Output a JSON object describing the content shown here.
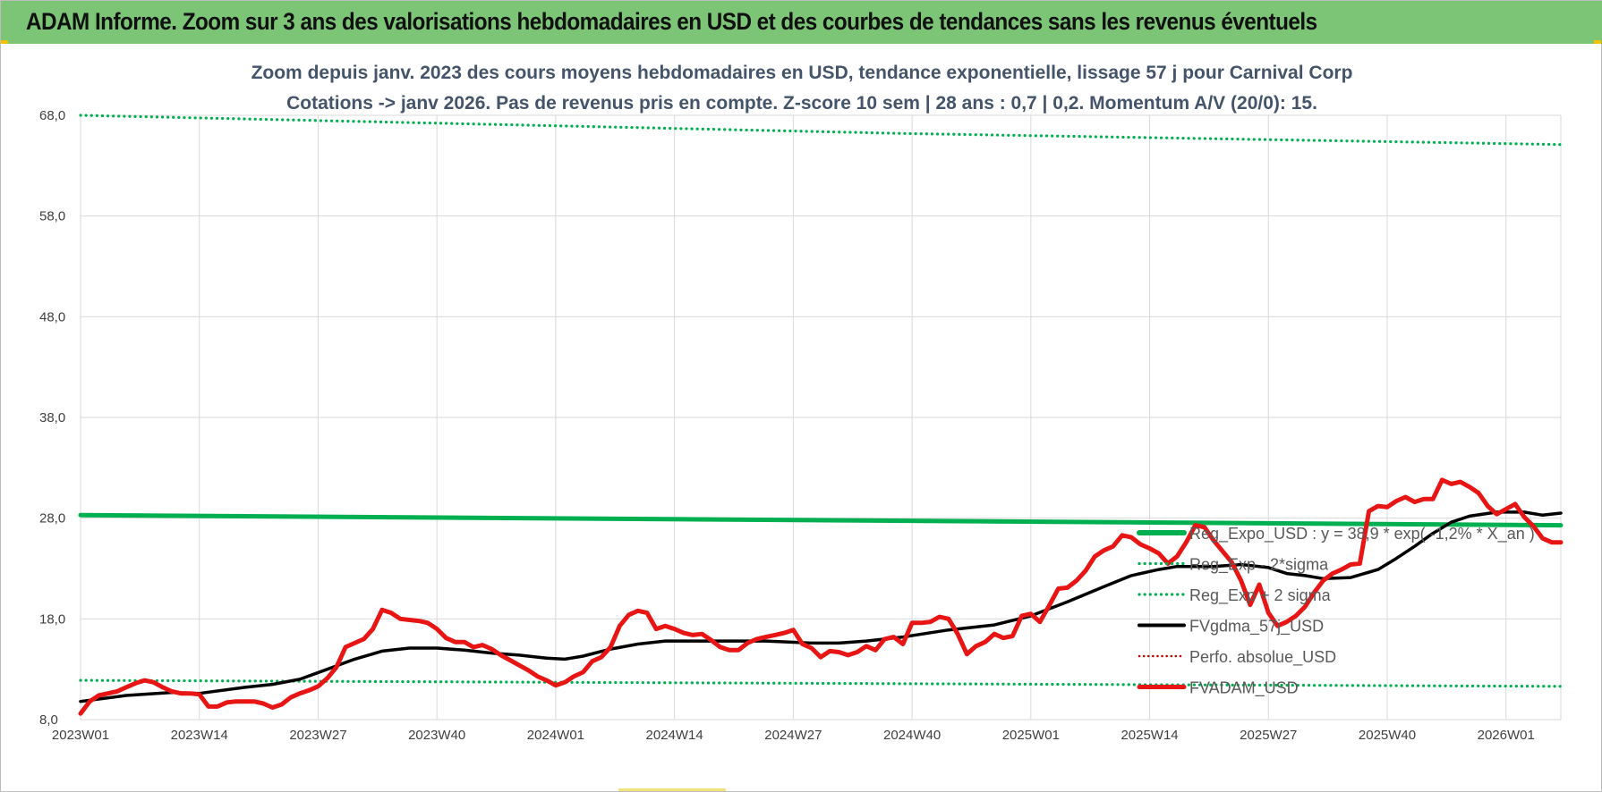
{
  "header": {
    "title": "ADAM Informe. Zoom sur 3 ans des valorisations hebdomadaires en USD et des courbes de tendances sans les revenus éventuels"
  },
  "colors": {
    "header_band": "#7cc576",
    "accent_corner": "#f2c200",
    "title_text": "#44546a",
    "grid": "#d9d9d9",
    "reg_expo": "#00b050",
    "fvgdma": "#000000",
    "perfo": "#c00000",
    "fvadam": "#e81515"
  },
  "chart_data": {
    "type": "line",
    "title": "Zoom depuis janv. 2023 des cours moyens hebdomadaires en USD, tendance exponentielle, lissage 57 j pour Carnival Corp",
    "subtitle": "Cotations -> janv 2026. Pas de revenus pris en compte. Z-score 10 sem | 28 ans : 0,7 | 0,2. Momentum A/V (20/0): 15.",
    "xlabel": "",
    "ylabel": "",
    "x_tick_labels": [
      "2023W01",
      "2023W14",
      "2023W27",
      "2023W40",
      "2024W01",
      "2024W14",
      "2024W27",
      "2024W40",
      "2025W01",
      "2025W14",
      "2025W27",
      "2025W40",
      "2026W01"
    ],
    "x_range_weeks": [
      0,
      162
    ],
    "y_ticks": [
      "8,0",
      "18,0",
      "28,0",
      "38,0",
      "48,0",
      "58,0",
      "68,0"
    ],
    "ylim": [
      8,
      68
    ],
    "grid": true,
    "legend_position": "right",
    "legend": [
      "Reg_Expo_USD : y = 38,9 * exp( -1,2% * X_an )",
      "Reg_Exp - 2*sigma",
      "Reg_Exp + 2 sigma",
      "FVgdma_57j_USD",
      "Perfo. absolue_USD",
      "FVADAM_USD"
    ],
    "series": [
      {
        "name": "Reg_Expo_USD : y = 38,9 * exp( -1,2% * X_an )",
        "style": "solid-thick",
        "color": "#00b050",
        "points": [
          [
            0,
            28.3
          ],
          [
            162,
            27.3
          ]
        ]
      },
      {
        "name": "Reg_Exp - 2*sigma",
        "style": "dotted",
        "color": "#00b050",
        "points": [
          [
            0,
            11.9
          ],
          [
            162,
            11.3
          ]
        ]
      },
      {
        "name": "Reg_Exp + 2 sigma",
        "style": "dotted",
        "color": "#00b050",
        "points": [
          [
            0,
            68.0
          ],
          [
            20,
            67.6
          ],
          [
            90,
            66.2
          ],
          [
            162,
            65.1
          ]
        ]
      },
      {
        "name": "FVgdma_57j_USD",
        "style": "solid",
        "color": "#000000",
        "points": [
          [
            0,
            9.8
          ],
          [
            5,
            10.4
          ],
          [
            10,
            10.7
          ],
          [
            13,
            10.6
          ],
          [
            18,
            11.2
          ],
          [
            21,
            11.5
          ],
          [
            24,
            12.0
          ],
          [
            27,
            13.0
          ],
          [
            30,
            14.0
          ],
          [
            33,
            14.8
          ],
          [
            36,
            15.1
          ],
          [
            39,
            15.1
          ],
          [
            42,
            14.9
          ],
          [
            45,
            14.6
          ],
          [
            48,
            14.4
          ],
          [
            51,
            14.1
          ],
          [
            53,
            14.0
          ],
          [
            55,
            14.3
          ],
          [
            58,
            15.0
          ],
          [
            61,
            15.5
          ],
          [
            64,
            15.8
          ],
          [
            70,
            15.8
          ],
          [
            75,
            15.8
          ],
          [
            80,
            15.6
          ],
          [
            83,
            15.6
          ],
          [
            86,
            15.8
          ],
          [
            90,
            16.2
          ],
          [
            95,
            16.9
          ],
          [
            100,
            17.4
          ],
          [
            104,
            18.3
          ],
          [
            108,
            19.7
          ],
          [
            112,
            21.2
          ],
          [
            115,
            22.3
          ],
          [
            118,
            22.9
          ],
          [
            120,
            23.2
          ],
          [
            124,
            23.2
          ],
          [
            127,
            23.4
          ],
          [
            130,
            23.1
          ],
          [
            132,
            22.5
          ],
          [
            134,
            22.3
          ],
          [
            136,
            22.0
          ],
          [
            139,
            22.1
          ],
          [
            142,
            22.9
          ],
          [
            144,
            24.0
          ],
          [
            146,
            25.2
          ],
          [
            148,
            26.5
          ],
          [
            150,
            27.6
          ],
          [
            152,
            28.2
          ],
          [
            155,
            28.6
          ],
          [
            158,
            28.6
          ],
          [
            160,
            28.3
          ],
          [
            162,
            28.5
          ],
          [
            165,
            29.1
          ],
          [
            170,
            28.3
          ],
          [
            175,
            28.2
          ],
          [
            179,
            28.9
          ],
          [
            183,
            29.4
          ],
          [
            186,
            29.5
          ]
        ]
      },
      {
        "name": "FVADAM_USD",
        "style": "solid-thick",
        "color": "#e81515",
        "points": [
          [
            0,
            8.6
          ],
          [
            1,
            9.8
          ],
          [
            2,
            10.4
          ],
          [
            4,
            10.8
          ],
          [
            5,
            11.2
          ],
          [
            6,
            11.6
          ],
          [
            7,
            11.9
          ],
          [
            8,
            11.7
          ],
          [
            9,
            11.2
          ],
          [
            10,
            10.8
          ],
          [
            11,
            10.6
          ],
          [
            12,
            10.6
          ],
          [
            13,
            10.5
          ],
          [
            14,
            9.3
          ],
          [
            15,
            9.3
          ],
          [
            16,
            9.7
          ],
          [
            17,
            9.8
          ],
          [
            18,
            9.8
          ],
          [
            19,
            9.8
          ],
          [
            20,
            9.6
          ],
          [
            21,
            9.2
          ],
          [
            22,
            9.5
          ],
          [
            23,
            10.2
          ],
          [
            24,
            10.6
          ],
          [
            25,
            10.9
          ],
          [
            26,
            11.3
          ],
          [
            27,
            12.1
          ],
          [
            28,
            13.2
          ],
          [
            29,
            15.2
          ],
          [
            30,
            15.6
          ],
          [
            31,
            16.0
          ],
          [
            32,
            17.0
          ],
          [
            33,
            18.9
          ],
          [
            34,
            18.6
          ],
          [
            35,
            18.0
          ],
          [
            36,
            17.9
          ],
          [
            37,
            17.8
          ],
          [
            38,
            17.6
          ],
          [
            39,
            17.0
          ],
          [
            40,
            16.1
          ],
          [
            41,
            15.7
          ],
          [
            42,
            15.7
          ],
          [
            43,
            15.2
          ],
          [
            44,
            15.4
          ],
          [
            45,
            15.0
          ],
          [
            46,
            14.4
          ],
          [
            47,
            13.9
          ],
          [
            48,
            13.4
          ],
          [
            49,
            12.9
          ],
          [
            50,
            12.3
          ],
          [
            51,
            11.9
          ],
          [
            52,
            11.4
          ],
          [
            53,
            11.7
          ],
          [
            54,
            12.3
          ],
          [
            55,
            12.7
          ],
          [
            56,
            13.8
          ],
          [
            57,
            14.2
          ],
          [
            58,
            15.2
          ],
          [
            59,
            17.3
          ],
          [
            60,
            18.4
          ],
          [
            61,
            18.8
          ],
          [
            62,
            18.6
          ],
          [
            63,
            17.0
          ],
          [
            64,
            17.3
          ],
          [
            65,
            17.0
          ],
          [
            66,
            16.6
          ],
          [
            67,
            16.4
          ],
          [
            68,
            16.5
          ],
          [
            69,
            15.9
          ],
          [
            70,
            15.2
          ],
          [
            71,
            14.9
          ],
          [
            72,
            14.9
          ],
          [
            73,
            15.6
          ],
          [
            74,
            16.0
          ],
          [
            75,
            16.2
          ],
          [
            76,
            16.4
          ],
          [
            77,
            16.6
          ],
          [
            78,
            16.9
          ],
          [
            79,
            15.5
          ],
          [
            80,
            15.1
          ],
          [
            81,
            14.2
          ],
          [
            82,
            14.8
          ],
          [
            83,
            14.7
          ],
          [
            84,
            14.4
          ],
          [
            85,
            14.7
          ],
          [
            86,
            15.3
          ],
          [
            87,
            14.9
          ],
          [
            88,
            16.0
          ],
          [
            89,
            16.2
          ],
          [
            90,
            15.5
          ],
          [
            91,
            17.6
          ],
          [
            92,
            17.6
          ],
          [
            93,
            17.7
          ],
          [
            94,
            18.2
          ],
          [
            95,
            18.0
          ],
          [
            96,
            16.5
          ],
          [
            97,
            14.5
          ],
          [
            98,
            15.3
          ],
          [
            99,
            15.7
          ],
          [
            100,
            16.5
          ],
          [
            101,
            16.1
          ],
          [
            102,
            16.3
          ],
          [
            103,
            18.3
          ],
          [
            104,
            18.5
          ],
          [
            105,
            17.7
          ],
          [
            106,
            19.3
          ],
          [
            107,
            21.0
          ],
          [
            108,
            21.1
          ],
          [
            109,
            21.8
          ],
          [
            110,
            22.8
          ],
          [
            111,
            24.2
          ],
          [
            112,
            24.8
          ],
          [
            113,
            25.2
          ],
          [
            114,
            26.3
          ],
          [
            115,
            26.1
          ],
          [
            116,
            25.4
          ],
          [
            117,
            25.0
          ],
          [
            118,
            24.5
          ],
          [
            119,
            23.5
          ],
          [
            120,
            24.2
          ],
          [
            121,
            25.6
          ],
          [
            122,
            27.3
          ],
          [
            123,
            27.1
          ],
          [
            124,
            25.8
          ],
          [
            125,
            24.7
          ],
          [
            126,
            23.6
          ],
          [
            127,
            21.8
          ],
          [
            128,
            19.4
          ],
          [
            129,
            21.4
          ],
          [
            130,
            18.6
          ],
          [
            131,
            17.3
          ],
          [
            132,
            17.7
          ],
          [
            133,
            18.3
          ],
          [
            134,
            19.2
          ],
          [
            135,
            20.6
          ],
          [
            136,
            21.8
          ],
          [
            137,
            22.5
          ],
          [
            138,
            22.9
          ],
          [
            139,
            23.4
          ],
          [
            140,
            23.5
          ],
          [
            141,
            28.7
          ],
          [
            142,
            29.2
          ],
          [
            143,
            29.1
          ],
          [
            144,
            29.7
          ],
          [
            145,
            30.1
          ],
          [
            146,
            29.6
          ],
          [
            147,
            29.9
          ],
          [
            148,
            29.9
          ],
          [
            149,
            31.8
          ],
          [
            150,
            31.4
          ],
          [
            151,
            31.6
          ],
          [
            152,
            31.1
          ],
          [
            153,
            30.5
          ],
          [
            154,
            29.2
          ],
          [
            155,
            28.4
          ],
          [
            156,
            28.9
          ],
          [
            157,
            29.4
          ],
          [
            158,
            28.1
          ],
          [
            159,
            27.2
          ],
          [
            160,
            26.0
          ],
          [
            161,
            25.6
          ],
          [
            162,
            25.6
          ],
          [
            163,
            25.9
          ],
          [
            164,
            26.8
          ],
          [
            165,
            31.6
          ],
          [
            166,
            30.6
          ],
          [
            167,
            31.7
          ],
          [
            168,
            30.4
          ],
          [
            169,
            28.1
          ],
          [
            170,
            29.2
          ]
        ]
      }
    ]
  }
}
